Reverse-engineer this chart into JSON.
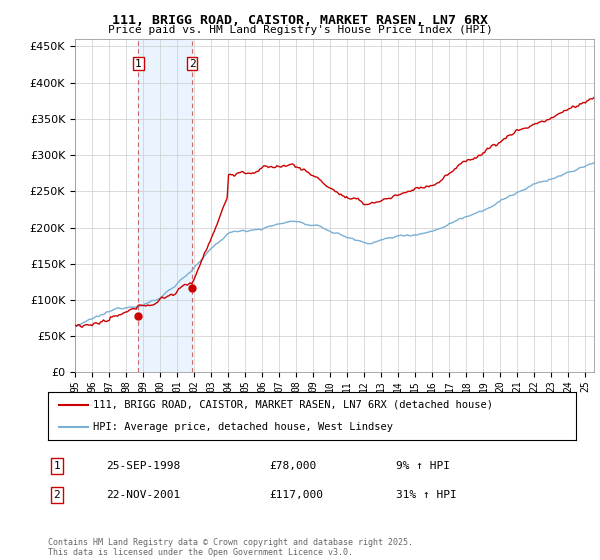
{
  "title1": "111, BRIGG ROAD, CAISTOR, MARKET RASEN, LN7 6RX",
  "title2": "Price paid vs. HM Land Registry's House Price Index (HPI)",
  "legend_line1": "111, BRIGG ROAD, CAISTOR, MARKET RASEN, LN7 6RX (detached house)",
  "legend_line2": "HPI: Average price, detached house, West Lindsey",
  "sale1_date": "25-SEP-1998",
  "sale1_price": "£78,000",
  "sale1_hpi": "9% ↑ HPI",
  "sale2_date": "22-NOV-2001",
  "sale2_price": "£117,000",
  "sale2_hpi": "31% ↑ HPI",
  "footer": "Contains HM Land Registry data © Crown copyright and database right 2025.\nThis data is licensed under the Open Government Licence v3.0.",
  "line_color_red": "#cc0000",
  "line_color_blue": "#7ab0d4",
  "sale_marker_color": "#cc0000",
  "vline_color": "#cc6666",
  "vshade_color": "#ddeeff",
  "grid_color": "#cccccc",
  "background_color": "#ffffff",
  "ylim": [
    0,
    460000
  ],
  "yticks": [
    0,
    50000,
    100000,
    150000,
    200000,
    250000,
    300000,
    350000,
    400000,
    450000
  ],
  "sale1_x": 1998.73,
  "sale1_y": 78000,
  "sale2_x": 2001.9,
  "sale2_y": 117000,
  "xmin": 1995,
  "xmax": 2025.5
}
